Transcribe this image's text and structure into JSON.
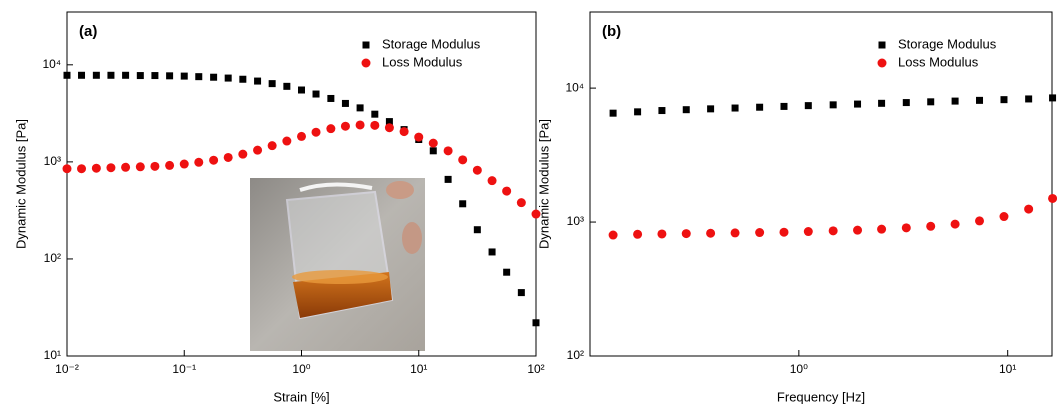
{
  "chart_data": [
    {
      "type": "scatter",
      "annotation": "(a)",
      "x_label": "Strain [%]",
      "y_label": "Dynamic Modulus [Pa]",
      "x_log": true,
      "y_log": true,
      "legend": "upper right",
      "xlim": [
        0.01,
        100
      ],
      "ylim": [
        10,
        35000
      ],
      "xticks": [
        {
          "value": 0.01,
          "label": "10⁻²"
        },
        {
          "value": 0.1,
          "label": "10⁻¹"
        },
        {
          "value": 1,
          "label": "10⁰"
        },
        {
          "value": 10,
          "label": "10¹"
        },
        {
          "value": 100,
          "label": "10²"
        }
      ],
      "yticks": [
        {
          "value": 10,
          "label": "10¹"
        },
        {
          "value": 100,
          "label": "10²"
        },
        {
          "value": 1000,
          "label": "10³"
        },
        {
          "value": 10000,
          "label": "10⁴"
        }
      ],
      "x": [
        0.01,
        0.0133,
        0.0178,
        0.0237,
        0.0316,
        0.0422,
        0.0562,
        0.075,
        0.1,
        0.133,
        0.178,
        0.237,
        0.316,
        0.422,
        0.562,
        0.75,
        1,
        1.33,
        1.78,
        2.37,
        3.16,
        4.22,
        5.62,
        7.5,
        10,
        13.3,
        17.8,
        23.7,
        31.6,
        42.2,
        56.2,
        75,
        100
      ],
      "series": [
        {
          "name": "Storage Modulus",
          "color": "#000000",
          "marker": "square",
          "values": [
            7800,
            7800,
            7800,
            7800,
            7800,
            7750,
            7750,
            7700,
            7650,
            7550,
            7450,
            7300,
            7100,
            6800,
            6400,
            6000,
            5500,
            5000,
            4500,
            4000,
            3600,
            3100,
            2600,
            2150,
            1700,
            1300,
            660,
            370,
            200,
            118,
            73,
            45,
            22
          ]
        },
        {
          "name": "Loss Modulus",
          "color": "#ee1111",
          "marker": "circle",
          "values": [
            850,
            850,
            860,
            870,
            880,
            890,
            900,
            920,
            950,
            990,
            1040,
            1110,
            1200,
            1320,
            1470,
            1640,
            1830,
            2020,
            2200,
            2330,
            2400,
            2380,
            2250,
            2050,
            1800,
            1560,
            1300,
            1050,
            820,
            640,
            500,
            380,
            290
          ]
        }
      ]
    },
    {
      "type": "scatter",
      "annotation": "(b)",
      "x_label": "Frequency [Hz]",
      "y_label": "Dynamic Modulus [Pa]",
      "x_log": true,
      "y_log": true,
      "legend": "upper right",
      "xlim": [
        0.1,
        16.3
      ],
      "ylim": [
        100,
        37000
      ],
      "xticks": [
        {
          "value": 1,
          "label": "10⁰"
        },
        {
          "value": 10,
          "label": "10¹"
        }
      ],
      "yticks": [
        {
          "value": 100,
          "label": "10²"
        },
        {
          "value": 1000,
          "label": "10³"
        },
        {
          "value": 10000,
          "label": "10⁴"
        }
      ],
      "x": [
        0.129,
        0.169,
        0.221,
        0.289,
        0.378,
        0.495,
        0.649,
        0.849,
        1.11,
        1.46,
        1.91,
        2.49,
        3.27,
        4.28,
        5.6,
        7.33,
        9.6,
        12.6,
        16.4
      ],
      "series": [
        {
          "name": "Storage Modulus",
          "color": "#000000",
          "marker": "square",
          "values": [
            6500,
            6650,
            6800,
            6900,
            7000,
            7100,
            7200,
            7300,
            7400,
            7500,
            7600,
            7700,
            7800,
            7900,
            8000,
            8100,
            8200,
            8300,
            8450
          ]
        },
        {
          "name": "Loss Modulus",
          "color": "#ee1111",
          "marker": "circle",
          "values": [
            800,
            810,
            815,
            820,
            825,
            830,
            835,
            840,
            850,
            860,
            870,
            885,
            905,
            930,
            965,
            1020,
            1100,
            1250,
            1500
          ]
        }
      ]
    }
  ]
}
